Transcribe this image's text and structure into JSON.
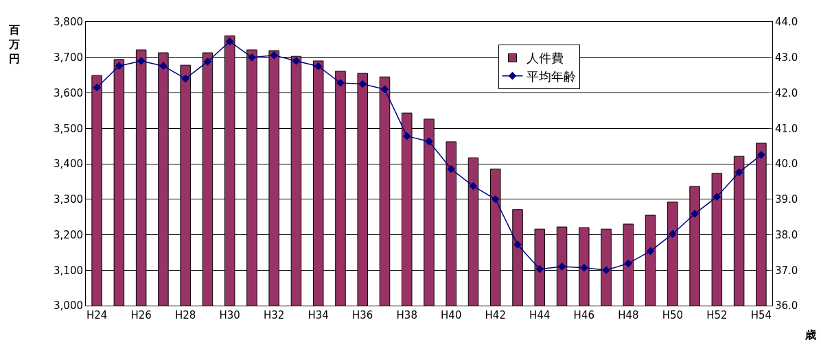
{
  "chart_data": {
    "type": "bar",
    "ylabel": "百万円",
    "y2label": "歳",
    "categories": [
      "H24",
      null,
      "H26",
      null,
      "H28",
      null,
      "H30",
      null,
      "H32",
      null,
      "H34",
      null,
      "H36",
      null,
      "H38",
      null,
      "H40",
      null,
      "H42",
      null,
      "H44",
      null,
      "H46",
      null,
      "H48",
      null,
      "H50",
      null,
      "H52",
      null,
      "H54"
    ],
    "series": [
      {
        "name": "人件費",
        "color": "#993366",
        "values": [
          3649,
          3694,
          3721,
          3713,
          3678,
          3713,
          3761,
          3721,
          3719,
          3703,
          3690,
          3661,
          3655,
          3645,
          3543,
          3526,
          3462,
          3417,
          3385,
          3271,
          3216,
          3222,
          3220,
          3216,
          3230,
          3255,
          3292,
          3336,
          3373,
          3421,
          3458
        ]
      },
      {
        "name": "平均年齢",
        "type": "line",
        "axis": "y2",
        "color": "#000080",
        "marker": "diamond",
        "values": [
          42.15,
          42.76,
          42.9,
          42.76,
          42.4,
          42.88,
          43.45,
          43.0,
          43.06,
          42.9,
          42.75,
          42.28,
          42.25,
          42.1,
          40.78,
          40.63,
          39.85,
          39.37,
          39.0,
          37.72,
          37.03,
          37.1,
          37.07,
          37.0,
          37.19,
          37.54,
          38.02,
          38.59,
          39.07,
          39.76,
          40.25
        ]
      }
    ],
    "ylim": [
      3000,
      3800
    ],
    "yticks": [
      {
        "value": 3000,
        "label": "3,000"
      },
      {
        "value": 3100,
        "label": "3,100"
      },
      {
        "value": 3200,
        "label": "3,200"
      },
      {
        "value": 3300,
        "label": "3,300"
      },
      {
        "value": 3400,
        "label": "3,400"
      },
      {
        "value": 3500,
        "label": "3,500"
      },
      {
        "value": 3600,
        "label": "3,600"
      },
      {
        "value": 3700,
        "label": "3,700"
      },
      {
        "value": 3800,
        "label": "3,800"
      }
    ],
    "y2lim": [
      36,
      44
    ],
    "y2ticks": [
      {
        "value": 36,
        "label": "36.0"
      },
      {
        "value": 37,
        "label": "37.0"
      },
      {
        "value": 38,
        "label": "38.0"
      },
      {
        "value": 39,
        "label": "39.0"
      },
      {
        "value": 40,
        "label": "40.0"
      },
      {
        "value": 41,
        "label": "41.0"
      },
      {
        "value": 42,
        "label": "42.0"
      },
      {
        "value": 43,
        "label": "43.0"
      },
      {
        "value": 44,
        "label": "44.0"
      }
    ],
    "grid": "y",
    "legend": "top"
  }
}
